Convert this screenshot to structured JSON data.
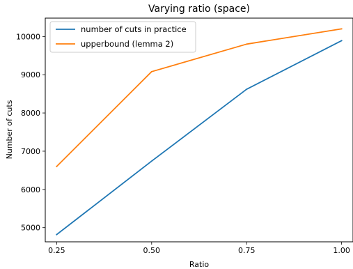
{
  "chart_data": {
    "type": "line",
    "title": "Varying ratio (space)",
    "xlabel": "Ratio",
    "ylabel": "Number of cuts",
    "x": [
      0.25,
      0.5,
      0.75,
      1.0
    ],
    "x_tick_labels": [
      "0.25",
      "0.50",
      "0.75",
      "1.00"
    ],
    "y_ticks": [
      5000,
      6000,
      7000,
      8000,
      9000,
      10000
    ],
    "y_tick_labels": [
      "5000",
      "6000",
      "7000",
      "8000",
      "9000",
      "10000"
    ],
    "xlim": [
      0.22,
      1.03
    ],
    "ylim": [
      4630,
      10480
    ],
    "grid": false,
    "legend_position": "top-left",
    "series": [
      {
        "name": "number of cuts in practice",
        "color": "#1f77b4",
        "values": [
          4820,
          6740,
          8620,
          9890
        ]
      },
      {
        "name": "upperbound (lemma 2)",
        "color": "#ff7f0e",
        "values": [
          6600,
          9080,
          9800,
          10200
        ]
      }
    ]
  }
}
